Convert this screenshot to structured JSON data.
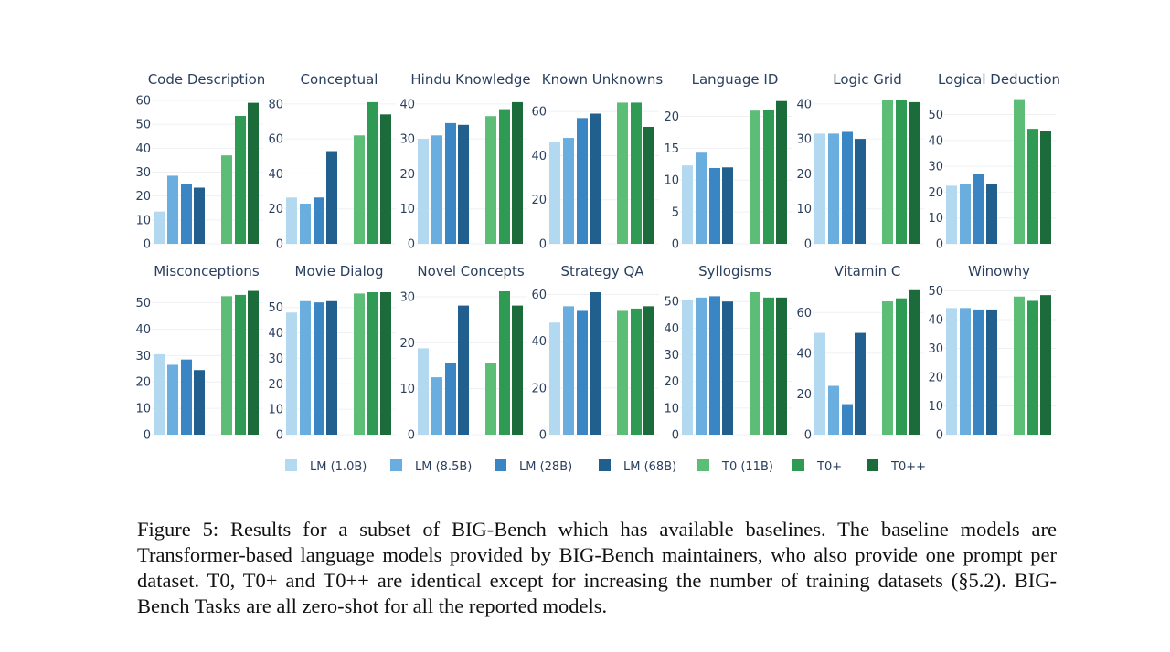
{
  "chart_data": {
    "type": "bar",
    "series_names": [
      "LM (1.0B)",
      "LM (8.5B)",
      "LM (28B)",
      "LM (68B)",
      "T0 (11B)",
      "T0+",
      "T0++"
    ],
    "colors": [
      "#b3d9f0",
      "#6aaee0",
      "#3a86c4",
      "#215f8e",
      "#5cbe76",
      "#2f9a54",
      "#1c6b3a"
    ],
    "legend_position": "bottom",
    "grid": true,
    "panels": [
      {
        "title": "Code Description",
        "ylim": [
          0,
          60
        ],
        "ticks": [
          0,
          10,
          20,
          30,
          40,
          50,
          60
        ],
        "values": [
          13.5,
          28.5,
          25,
          23.5,
          37,
          53.5,
          59
        ]
      },
      {
        "title": "Conceptual",
        "ylim": [
          0,
          82
        ],
        "ticks": [
          0,
          20,
          40,
          60,
          80
        ],
        "values": [
          26.5,
          23,
          26.5,
          53,
          62,
          81,
          74
        ]
      },
      {
        "title": "Hindu Knowledge",
        "ylim": [
          0,
          41
        ],
        "ticks": [
          0,
          10,
          20,
          30,
          40
        ],
        "values": [
          30,
          31,
          34.5,
          34,
          36.5,
          38.5,
          40.5
        ]
      },
      {
        "title": "Known Unknowns",
        "ylim": [
          0,
          65
        ],
        "ticks": [
          0,
          20,
          40,
          60
        ],
        "values": [
          46,
          48,
          57,
          59,
          64,
          64,
          53
        ]
      },
      {
        "title": "Language ID",
        "ylim": [
          0,
          22.5
        ],
        "ticks": [
          0,
          5,
          10,
          15,
          20
        ],
        "values": [
          12.3,
          14.3,
          11.9,
          12,
          20.9,
          21,
          22.4
        ]
      },
      {
        "title": "Logic Grid",
        "ylim": [
          0,
          41
        ],
        "ticks": [
          0,
          10,
          20,
          30,
          40
        ],
        "values": [
          31.5,
          31.5,
          32,
          30,
          41,
          41,
          40.5
        ]
      },
      {
        "title": "Logical Deduction",
        "ylim": [
          0,
          55.5
        ],
        "ticks": [
          0,
          10,
          20,
          30,
          40,
          50
        ],
        "values": [
          22.5,
          23,
          27,
          23,
          56,
          44.5,
          43.5
        ]
      },
      {
        "title": "Misconceptions",
        "ylim": [
          0,
          54
        ],
        "ticks": [
          0,
          10,
          20,
          30,
          40,
          50
        ],
        "values": [
          30.5,
          26.5,
          28.5,
          24.5,
          52.5,
          53,
          54.5
        ]
      },
      {
        "title": "Movie Dialog",
        "ylim": [
          0,
          56
        ],
        "ticks": [
          0,
          10,
          20,
          30,
          40,
          50
        ],
        "values": [
          48,
          52.5,
          52,
          52.5,
          55.5,
          56,
          56
        ]
      },
      {
        "title": "Novel Concepts",
        "ylim": [
          0,
          31
        ],
        "ticks": [
          0,
          10,
          20,
          30
        ],
        "values": [
          18.8,
          12.5,
          15.6,
          28.1,
          15.6,
          31.2,
          28.1
        ]
      },
      {
        "title": "Strategy QA",
        "ylim": [
          0,
          61
        ],
        "ticks": [
          0,
          20,
          40,
          60
        ],
        "values": [
          48,
          55,
          53,
          61,
          53,
          54,
          55
        ]
      },
      {
        "title": "Syllogisms",
        "ylim": [
          0,
          53.5
        ],
        "ticks": [
          0,
          10,
          20,
          30,
          40,
          50
        ],
        "values": [
          50.5,
          51.5,
          52,
          50,
          53.5,
          51.5,
          51.5
        ]
      },
      {
        "title": "Vitamin C",
        "ylim": [
          0,
          70
        ],
        "ticks": [
          0,
          20,
          40,
          60
        ],
        "values": [
          50,
          24,
          15,
          50,
          65.5,
          67,
          71
        ]
      },
      {
        "title": "Winowhy",
        "ylim": [
          0,
          49.5
        ],
        "ticks": [
          0,
          10,
          20,
          30,
          40,
          50
        ],
        "values": [
          44,
          44,
          43.5,
          43.5,
          48,
          46.5,
          48.5
        ]
      }
    ]
  },
  "caption": "Figure 5: Results for a subset of BIG-Bench which has available baselines. The baseline models are Transformer-based language models provided by BIG-Bench maintainers, who also provide one prompt per dataset. T0, T0+ and T0++ are identical except for increasing the number of training datasets (§5.2). BIG-Bench Tasks are all zero-shot for all the reported models."
}
